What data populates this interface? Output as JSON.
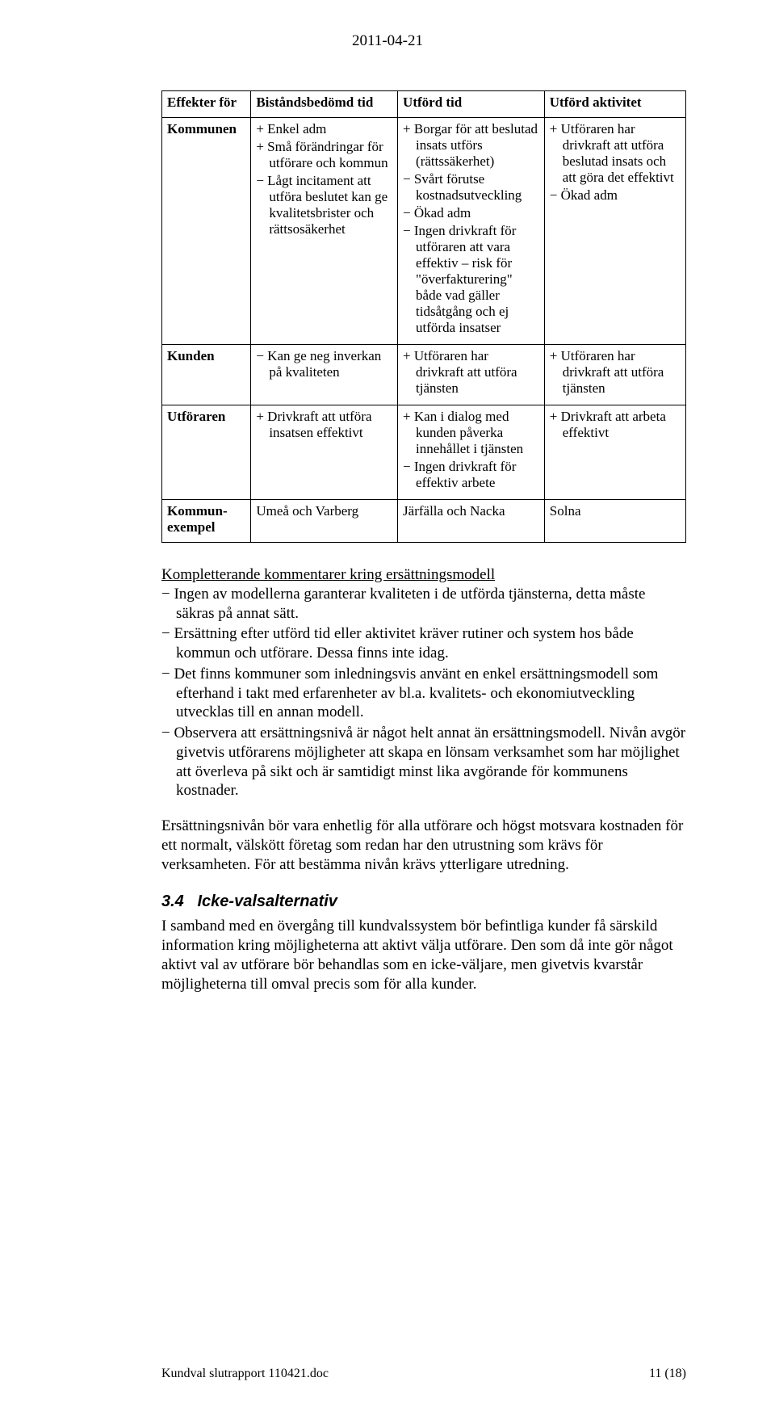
{
  "date": "2011-04-21",
  "table": {
    "headers": [
      "Effekter för",
      "Biståndsbedömd tid",
      "Utförd tid",
      "Utförd aktivitet"
    ],
    "rows": [
      {
        "label": "Kommunen",
        "c1": [
          "+ Enkel adm",
          "+ Små förändringar för utförare och kommun",
          "− Lågt incitament att utföra beslutet kan ge kvalitetsbrister och rättsosäkerhet"
        ],
        "c2": [
          "+ Borgar för att beslutad insats utförs (rättssäkerhet)",
          "− Svårt förutse kostnadsutveckling",
          "− Ökad adm",
          "− Ingen drivkraft för utföraren att vara effektiv – risk för \"överfakturering\" både vad gäller tidsåtgång och ej utförda insatser"
        ],
        "c3": [
          "+ Utföraren har drivkraft att utföra beslutad insats och att göra det effektivt",
          "− Ökad adm"
        ]
      },
      {
        "label": "Kunden",
        "c1": [
          "− Kan ge neg inverkan på kvaliteten"
        ],
        "c2": [
          "+ Utföraren har drivkraft att utföra tjänsten"
        ],
        "c3": [
          "+ Utföraren har drivkraft att utföra tjänsten"
        ]
      },
      {
        "label": "Utföraren",
        "c1": [
          "+ Drivkraft att utföra insatsen effektivt"
        ],
        "c2": [
          "+ Kan i dialog med kunden påverka innehållet i tjänsten",
          "− Ingen drivkraft för effektiv arbete"
        ],
        "c3": [
          "+ Drivkraft att arbeta effektivt"
        ]
      },
      {
        "label": "Kommun-exempel",
        "c1": [
          "Umeå och Varberg"
        ],
        "c2": [
          "Järfälla och Nacka"
        ],
        "c3": [
          "Solna"
        ]
      }
    ]
  },
  "comments_heading": "Kompletterande kommentarer kring ersättningsmodell",
  "comments": [
    "− Ingen av modellerna garanterar kvaliteten i de utförda tjänsterna, detta måste säkras på annat sätt.",
    "− Ersättning efter utförd tid eller aktivitet kräver rutiner och system hos både kommun och utförare. Dessa finns inte idag.",
    "− Det finns kommuner som inledningsvis använt en enkel ersättningsmodell som efterhand i takt med erfarenheter av bl.a. kvalitets- och ekonomiutveckling utvecklas till en annan modell.",
    "− Observera att ersättningsnivå är något helt annat än ersättningsmodell. Nivån avgör givetvis utförarens möjligheter att skapa en lönsam verksamhet som har möjlighet att överleva på sikt och är samtidigt minst lika avgörande för kommunens kostnader."
  ],
  "paragraph1": "Ersättningsnivån bör vara enhetlig för alla utförare och högst motsvara kostnaden för ett normalt, välskött företag som redan har den utrustning som krävs för verksamheten. För att bestämma nivån krävs ytterligare utredning.",
  "section": {
    "number": "3.4",
    "title": "Icke-valsalternativ"
  },
  "paragraph2": "I samband med en övergång till kundvalssystem bör befintliga kunder få särskild information kring möjligheterna att aktivt välja utförare. Den som då inte gör något aktivt val av utförare bör behandlas som en icke-väljare, men givetvis kvarstår möjligheterna till omval precis som för alla kunder.",
  "footer": {
    "left": "Kundval slutrapport 110421.doc",
    "right": "11 (18)"
  }
}
